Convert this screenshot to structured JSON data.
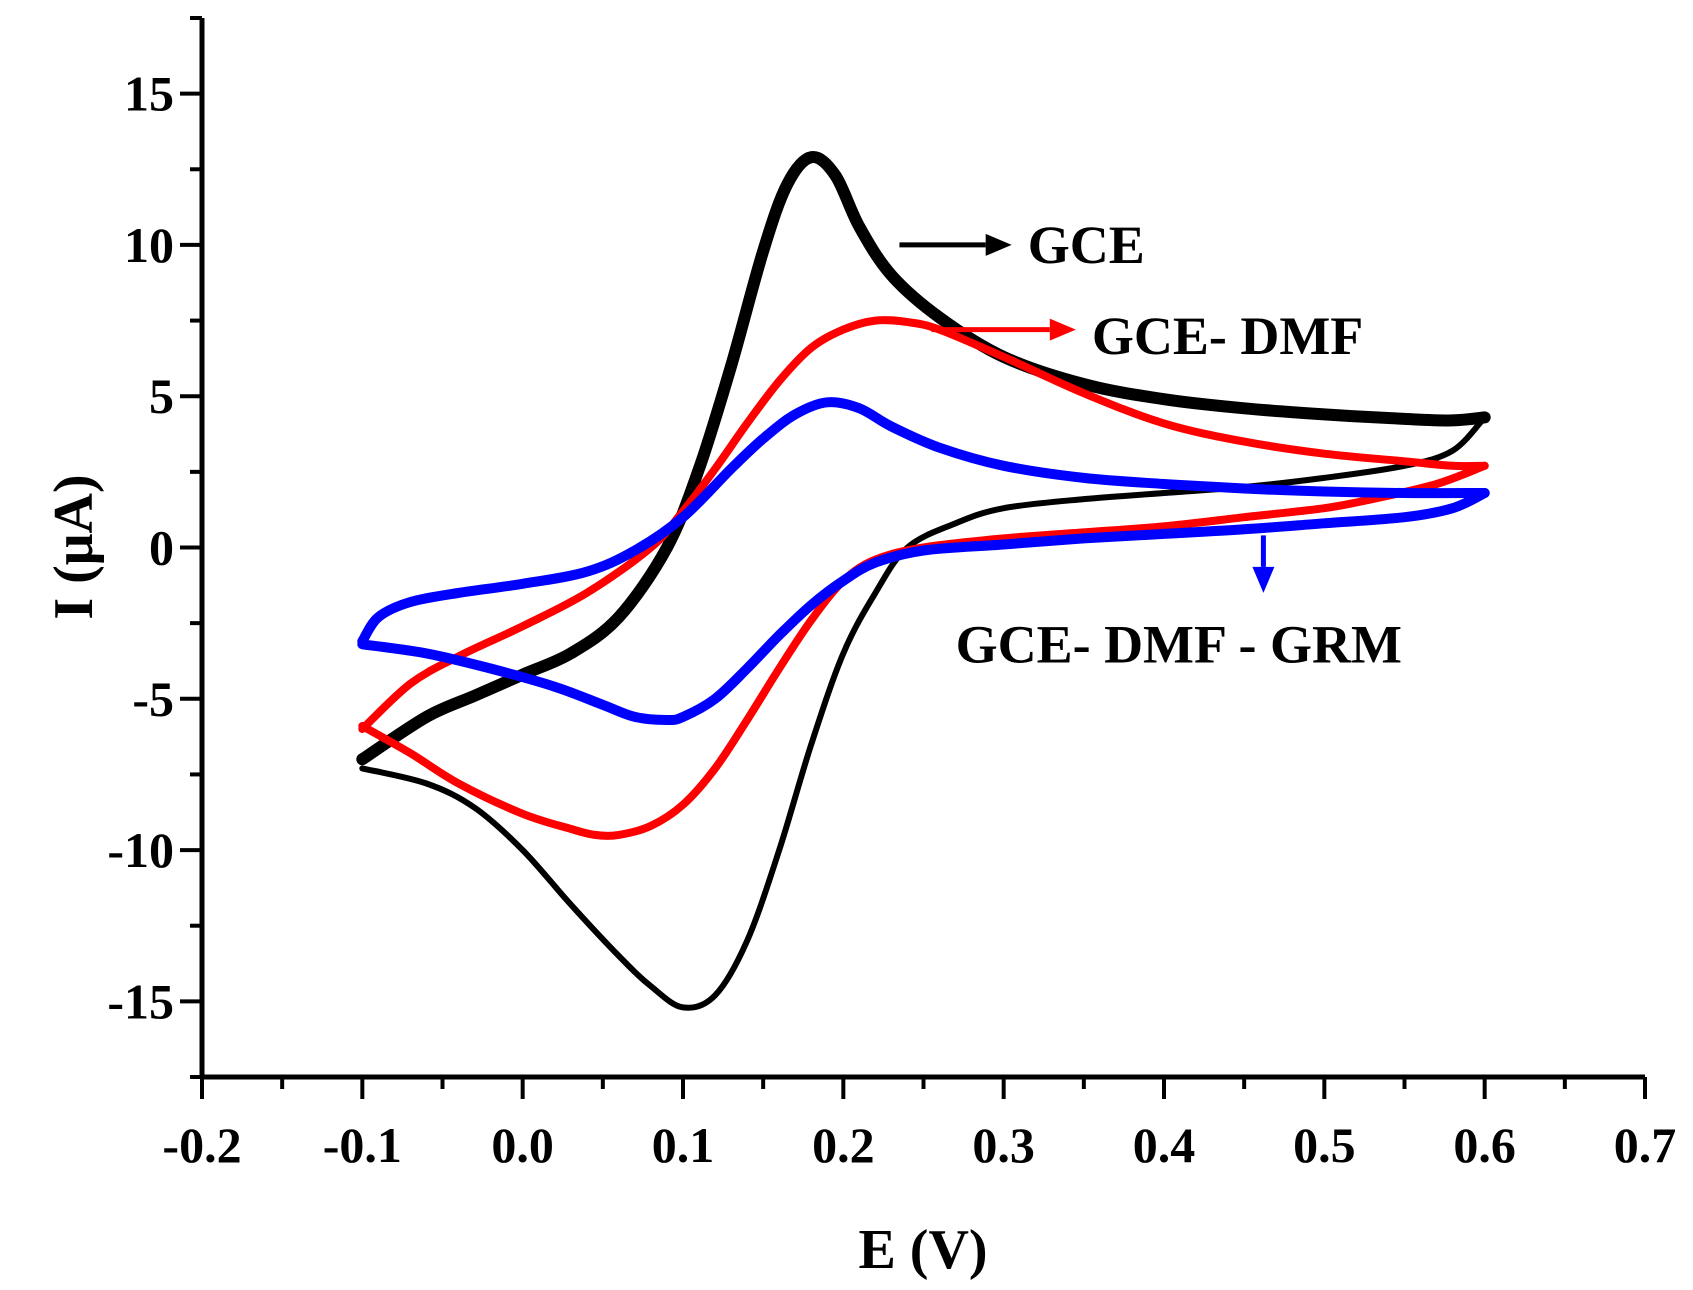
{
  "chart_data": {
    "type": "line",
    "title": "",
    "xlabel": "E (V)",
    "ylabel": "I (μA)",
    "xlim": [
      -0.2,
      0.7
    ],
    "ylim": [
      -17.5,
      17.5
    ],
    "x_ticks": [
      -0.2,
      -0.1,
      0.0,
      0.1,
      0.2,
      0.3,
      0.4,
      0.5,
      0.6,
      0.7
    ],
    "x_tick_labels": [
      "-0.2",
      "-0.1",
      "0.0",
      "0.1",
      "0.2",
      "0.3",
      "0.4",
      "0.5",
      "0.6",
      "0.7"
    ],
    "y_ticks": [
      -15,
      -10,
      -5,
      0,
      5,
      10,
      15
    ],
    "y_tick_labels": [
      "-15",
      "-10",
      "-5",
      "0",
      "5",
      "10",
      "15"
    ],
    "grid": false,
    "series": [
      {
        "name": "GCE",
        "color": "#000000",
        "anodic": {
          "x": [
            -0.1,
            -0.06,
            -0.03,
            0.0,
            0.03,
            0.06,
            0.09,
            0.11,
            0.13,
            0.15,
            0.165,
            0.18,
            0.195,
            0.21,
            0.23,
            0.26,
            0.3,
            0.35,
            0.4,
            0.45,
            0.5,
            0.55,
            0.58,
            0.6
          ],
          "y": [
            -7.0,
            -5.6,
            -4.9,
            -4.2,
            -3.5,
            -2.3,
            0.0,
            2.6,
            6.0,
            9.8,
            12.0,
            12.9,
            12.3,
            10.6,
            9.0,
            7.6,
            6.3,
            5.4,
            4.9,
            4.6,
            4.4,
            4.25,
            4.2,
            4.3
          ]
        },
        "cathodic": {
          "x": [
            0.6,
            0.58,
            0.55,
            0.5,
            0.45,
            0.4,
            0.35,
            0.3,
            0.27,
            0.24,
            0.22,
            0.2,
            0.18,
            0.16,
            0.14,
            0.12,
            0.1,
            0.08,
            0.06,
            0.03,
            0.0,
            -0.03,
            -0.06,
            -0.1
          ],
          "y": [
            4.3,
            3.2,
            2.7,
            2.3,
            2.0,
            1.8,
            1.6,
            1.3,
            0.8,
            0.0,
            -1.5,
            -3.5,
            -6.5,
            -10.0,
            -13.0,
            -14.8,
            -15.2,
            -14.5,
            -13.5,
            -11.8,
            -10.0,
            -8.6,
            -7.8,
            -7.3
          ]
        }
      },
      {
        "name": "GCE- DMF",
        "color": "#ff0000",
        "anodic": {
          "x": [
            -0.1,
            -0.07,
            -0.04,
            0.0,
            0.04,
            0.08,
            0.1,
            0.12,
            0.14,
            0.16,
            0.18,
            0.2,
            0.22,
            0.24,
            0.26,
            0.3,
            0.35,
            0.4,
            0.45,
            0.5,
            0.55,
            0.58,
            0.6
          ],
          "y": [
            -6.0,
            -4.5,
            -3.6,
            -2.6,
            -1.5,
            0.0,
            1.2,
            2.6,
            4.1,
            5.5,
            6.6,
            7.2,
            7.5,
            7.45,
            7.2,
            6.3,
            5.1,
            4.1,
            3.5,
            3.1,
            2.85,
            2.7,
            2.7
          ]
        },
        "cathodic": {
          "x": [
            0.6,
            0.57,
            0.53,
            0.5,
            0.45,
            0.4,
            0.35,
            0.3,
            0.25,
            0.22,
            0.2,
            0.18,
            0.16,
            0.14,
            0.12,
            0.1,
            0.08,
            0.06,
            0.045,
            0.03,
            0.0,
            -0.04,
            -0.07,
            -0.1
          ],
          "y": [
            2.7,
            2.1,
            1.6,
            1.3,
            1.0,
            0.7,
            0.5,
            0.3,
            0.0,
            -0.4,
            -1.1,
            -2.4,
            -4.0,
            -5.7,
            -7.3,
            -8.5,
            -9.2,
            -9.5,
            -9.5,
            -9.3,
            -8.8,
            -7.8,
            -6.8,
            -5.9
          ]
        }
      },
      {
        "name": "GCE- DMF - GRM",
        "color": "#0000ff",
        "anodic": {
          "x": [
            -0.1,
            -0.09,
            -0.07,
            -0.04,
            0.0,
            0.04,
            0.07,
            0.1,
            0.13,
            0.15,
            0.17,
            0.19,
            0.21,
            0.23,
            0.26,
            0.3,
            0.35,
            0.4,
            0.45,
            0.5,
            0.55,
            0.6
          ],
          "y": [
            -3.1,
            -2.3,
            -1.8,
            -1.5,
            -1.2,
            -0.8,
            -0.1,
            1.0,
            2.6,
            3.6,
            4.4,
            4.8,
            4.6,
            4.0,
            3.3,
            2.7,
            2.3,
            2.1,
            1.95,
            1.85,
            1.8,
            1.8
          ]
        },
        "cathodic": {
          "x": [
            0.6,
            0.58,
            0.55,
            0.5,
            0.45,
            0.4,
            0.35,
            0.3,
            0.25,
            0.22,
            0.2,
            0.18,
            0.16,
            0.14,
            0.12,
            0.1,
            0.09,
            0.07,
            0.05,
            0.02,
            -0.02,
            -0.06,
            -0.1
          ],
          "y": [
            1.8,
            1.3,
            1.0,
            0.8,
            0.6,
            0.45,
            0.3,
            0.1,
            -0.1,
            -0.5,
            -1.1,
            -1.9,
            -2.9,
            -4.0,
            -5.0,
            -5.6,
            -5.7,
            -5.6,
            -5.2,
            -4.6,
            -4.0,
            -3.5,
            -3.2
          ]
        }
      }
    ],
    "annotations": [
      {
        "text": "GCE",
        "color": "#000000",
        "arrow_from": [
          0.235,
          10.0
        ],
        "arrow_to": [
          0.305,
          10.0
        ],
        "label_at": [
          0.315,
          9.4
        ]
      },
      {
        "text": "GCE- DMF",
        "color": "#ff0000",
        "arrow_from": [
          0.255,
          7.2
        ],
        "arrow_to": [
          0.345,
          7.2
        ],
        "label_at": [
          0.355,
          6.4
        ]
      },
      {
        "text": "GCE- DMF - GRM",
        "color": "#0000ff",
        "arrow_from": [
          0.462,
          0.4
        ],
        "arrow_to": [
          0.462,
          -1.5
        ],
        "label_at": [
          0.27,
          -3.8
        ]
      }
    ]
  }
}
